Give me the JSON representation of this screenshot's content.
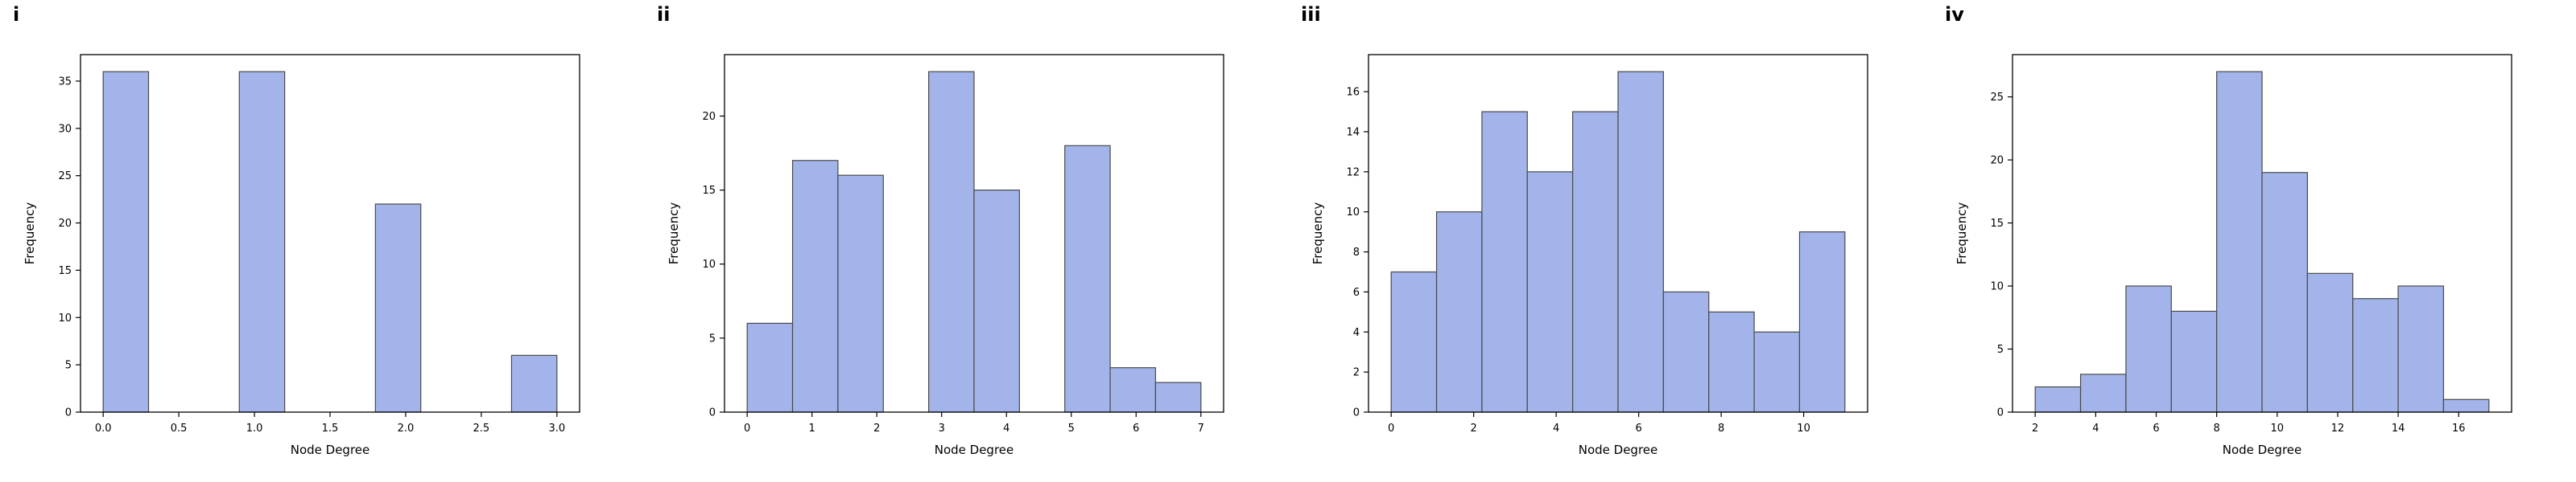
{
  "style": {
    "bar_fill": "#a2b4ea",
    "bar_edge": "#4a4a4a",
    "axis_color": "#000000",
    "background": "#ffffff"
  },
  "chart_data": [
    {
      "type": "bar",
      "panel_label": "i",
      "title": "",
      "xlabel": "Node Degree",
      "ylabel": "Frequency",
      "grid": false,
      "legend": "none",
      "bin_edges": [
        0,
        0.3,
        0.6,
        0.9,
        1.2,
        1.5,
        1.8,
        2.1,
        2.4,
        2.7,
        3.0
      ],
      "counts": [
        36,
        0,
        0,
        36,
        0,
        0,
        22,
        0,
        0,
        6
      ],
      "xlim": [
        -0.15,
        3.15
      ],
      "ylim": [
        0,
        37.8
      ],
      "xticks": [
        0,
        0.5,
        1.0,
        1.5,
        2.0,
        2.5,
        3.0
      ],
      "xtick_labels": [
        "0.0",
        "0.5",
        "1.0",
        "1.5",
        "2.0",
        "2.5",
        "3.0"
      ],
      "yticks": [
        0,
        5,
        10,
        15,
        20,
        25,
        30,
        35
      ],
      "ytick_labels": [
        "0",
        "5",
        "10",
        "15",
        "20",
        "25",
        "30",
        "35"
      ]
    },
    {
      "type": "bar",
      "panel_label": "ii",
      "title": "",
      "xlabel": "Node Degree",
      "ylabel": "Frequency",
      "grid": false,
      "legend": "none",
      "bin_edges": [
        0,
        0.7,
        1.4,
        2.1,
        2.8,
        3.5,
        4.2,
        4.9,
        5.6,
        6.3,
        7.0
      ],
      "counts": [
        6,
        17,
        16,
        0,
        23,
        15,
        0,
        18,
        3,
        2
      ],
      "xlim": [
        -0.35,
        7.35
      ],
      "ylim": [
        0,
        24.15
      ],
      "xticks": [
        0,
        1,
        2,
        3,
        4,
        5,
        6,
        7
      ],
      "xtick_labels": [
        "0",
        "1",
        "2",
        "3",
        "4",
        "5",
        "6",
        "7"
      ],
      "yticks": [
        0,
        5,
        10,
        15,
        20
      ],
      "ytick_labels": [
        "0",
        "5",
        "10",
        "15",
        "20"
      ]
    },
    {
      "type": "bar",
      "panel_label": "iii",
      "title": "",
      "xlabel": "Node Degree",
      "ylabel": "Frequency",
      "grid": false,
      "legend": "none",
      "bin_edges": [
        0,
        1.1,
        2.2,
        3.3,
        4.4,
        5.5,
        6.6,
        7.7,
        8.8,
        9.9,
        11.0
      ],
      "counts": [
        7,
        10,
        15,
        12,
        15,
        17,
        6,
        5,
        4,
        9
      ],
      "xlim": [
        -0.55,
        11.55
      ],
      "ylim": [
        0,
        17.85
      ],
      "xticks": [
        0,
        2,
        4,
        6,
        8,
        10
      ],
      "xtick_labels": [
        "0",
        "2",
        "4",
        "6",
        "8",
        "10"
      ],
      "yticks": [
        0,
        2,
        4,
        6,
        8,
        10,
        12,
        14,
        16
      ],
      "ytick_labels": [
        "0",
        "2",
        "4",
        "6",
        "8",
        "10",
        "12",
        "14",
        "16"
      ]
    },
    {
      "type": "bar",
      "panel_label": "iv",
      "title": "",
      "xlabel": "Node Degree",
      "ylabel": "Frequency",
      "grid": false,
      "legend": "none",
      "bin_edges": [
        2,
        3.5,
        5,
        6.5,
        8,
        9.5,
        11,
        12.5,
        14,
        15.5,
        17
      ],
      "counts": [
        2,
        3,
        10,
        8,
        27,
        19,
        11,
        9,
        10,
        1
      ],
      "xlim": [
        1.25,
        17.75
      ],
      "ylim": [
        0,
        28.35
      ],
      "xticks": [
        2,
        4,
        6,
        8,
        10,
        12,
        14,
        16
      ],
      "xtick_labels": [
        "2",
        "4",
        "6",
        "8",
        "10",
        "12",
        "14",
        "16"
      ],
      "yticks": [
        0,
        5,
        10,
        15,
        20,
        25
      ],
      "ytick_labels": [
        "0",
        "5",
        "10",
        "15",
        "20",
        "25"
      ]
    }
  ]
}
